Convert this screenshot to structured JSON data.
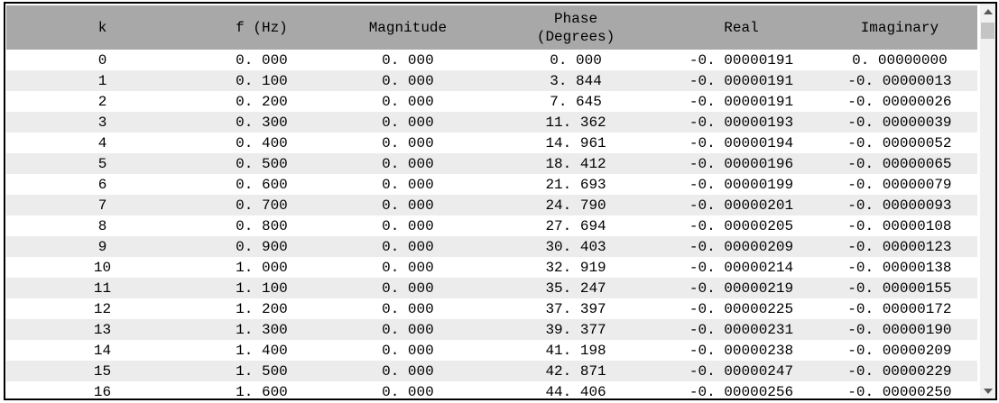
{
  "colors": {
    "header_background": "#a8a8a8",
    "row_alternate": "#ececec",
    "border": "#000000",
    "scrollbar_track": "#f0f0f0",
    "scrollbar_thumb": "#c4c4c4"
  },
  "table": {
    "columns": [
      {
        "key": "k",
        "label": "k"
      },
      {
        "key": "f",
        "label": "f (Hz)"
      },
      {
        "key": "magnitude",
        "label": "Magnitude"
      },
      {
        "key": "phase",
        "label_lines": [
          "Phase",
          "(Degrees)"
        ]
      },
      {
        "key": "real",
        "label": "Real"
      },
      {
        "key": "imaginary",
        "label": "Imaginary"
      }
    ],
    "rows": [
      {
        "k": "0",
        "f": "0. 000",
        "magnitude": "0. 000",
        "phase": "0. 000",
        "real": "-0. 00000191",
        "imaginary": "0. 00000000"
      },
      {
        "k": "1",
        "f": "0. 100",
        "magnitude": "0. 000",
        "phase": "3. 844",
        "real": "-0. 00000191",
        "imaginary": "-0. 00000013"
      },
      {
        "k": "2",
        "f": "0. 200",
        "magnitude": "0. 000",
        "phase": "7. 645",
        "real": "-0. 00000191",
        "imaginary": "-0. 00000026"
      },
      {
        "k": "3",
        "f": "0. 300",
        "magnitude": "0. 000",
        "phase": "11. 362",
        "real": "-0. 00000193",
        "imaginary": "-0. 00000039"
      },
      {
        "k": "4",
        "f": "0. 400",
        "magnitude": "0. 000",
        "phase": "14. 961",
        "real": "-0. 00000194",
        "imaginary": "-0. 00000052"
      },
      {
        "k": "5",
        "f": "0. 500",
        "magnitude": "0. 000",
        "phase": "18. 412",
        "real": "-0. 00000196",
        "imaginary": "-0. 00000065"
      },
      {
        "k": "6",
        "f": "0. 600",
        "magnitude": "0. 000",
        "phase": "21. 693",
        "real": "-0. 00000199",
        "imaginary": "-0. 00000079"
      },
      {
        "k": "7",
        "f": "0. 700",
        "magnitude": "0. 000",
        "phase": "24. 790",
        "real": "-0. 00000201",
        "imaginary": "-0. 00000093"
      },
      {
        "k": "8",
        "f": "0. 800",
        "magnitude": "0. 000",
        "phase": "27. 694",
        "real": "-0. 00000205",
        "imaginary": "-0. 00000108"
      },
      {
        "k": "9",
        "f": "0. 900",
        "magnitude": "0. 000",
        "phase": "30. 403",
        "real": "-0. 00000209",
        "imaginary": "-0. 00000123"
      },
      {
        "k": "10",
        "f": "1. 000",
        "magnitude": "0. 000",
        "phase": "32. 919",
        "real": "-0. 00000214",
        "imaginary": "-0. 00000138"
      },
      {
        "k": "11",
        "f": "1. 100",
        "magnitude": "0. 000",
        "phase": "35. 247",
        "real": "-0. 00000219",
        "imaginary": "-0. 00000155"
      },
      {
        "k": "12",
        "f": "1. 200",
        "magnitude": "0. 000",
        "phase": "37. 397",
        "real": "-0. 00000225",
        "imaginary": "-0. 00000172"
      },
      {
        "k": "13",
        "f": "1. 300",
        "magnitude": "0. 000",
        "phase": "39. 377",
        "real": "-0. 00000231",
        "imaginary": "-0. 00000190"
      },
      {
        "k": "14",
        "f": "1. 400",
        "magnitude": "0. 000",
        "phase": "41. 198",
        "real": "-0. 00000238",
        "imaginary": "-0. 00000209"
      },
      {
        "k": "15",
        "f": "1. 500",
        "magnitude": "0. 000",
        "phase": "42. 871",
        "real": "-0. 00000247",
        "imaginary": "-0. 00000229"
      },
      {
        "k": "16",
        "f": "1. 600",
        "magnitude": "0. 000",
        "phase": "44. 406",
        "real": "-0. 00000256",
        "imaginary": "-0. 00000250"
      }
    ]
  },
  "scrollbar": {
    "orientation": "vertical",
    "position": "top"
  }
}
